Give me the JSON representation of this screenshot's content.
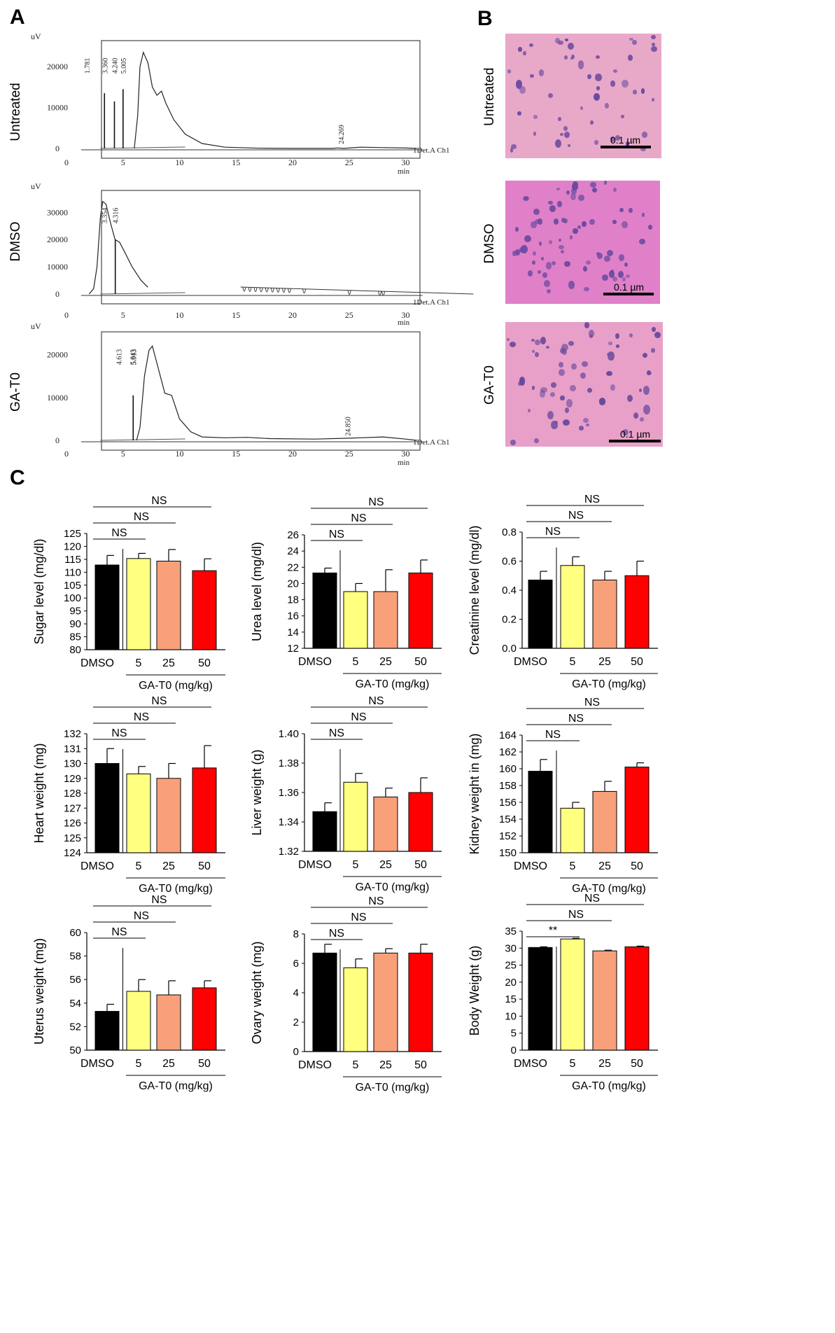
{
  "panels": {
    "a": "A",
    "b": "B",
    "c": "C"
  },
  "histology": {
    "rows": [
      {
        "label": "Untreated",
        "scale": "0.1  µm"
      },
      {
        "label": "DMSO",
        "scale": "0.1  µm"
      },
      {
        "label": "GA-T0",
        "scale": "0.1  µm"
      }
    ],
    "colors": {
      "tissue": "#e6a0c8",
      "nucleus": "#6a4aa0"
    }
  },
  "chromatograms": [
    {
      "row_label": "Untreated",
      "y_unit": "uV",
      "y_ticks": [
        0,
        10000,
        20000
      ],
      "ymax": 25000,
      "x_ticks": [
        0,
        5,
        10,
        15,
        20,
        25,
        30
      ],
      "x_unit": "min",
      "channel": "1Det.A Ch1",
      "peak_labels": [
        {
          "t": 1.781,
          "label": "1.781"
        },
        {
          "t": 3.36,
          "label": "3.360"
        },
        {
          "t": 4.24,
          "label": "4.240"
        },
        {
          "t": 5.005,
          "label": "5.005"
        },
        {
          "t": 24.269,
          "label": "24.269"
        }
      ],
      "spikes": [
        {
          "t": 3.36,
          "h": 13500
        },
        {
          "t": 4.24,
          "h": 11500
        },
        {
          "t": 5.005,
          "h": 14500
        }
      ],
      "trace": [
        [
          6.0,
          0
        ],
        [
          6.3,
          8000
        ],
        [
          6.5,
          20000
        ],
        [
          6.8,
          23500
        ],
        [
          7.2,
          21000
        ],
        [
          7.6,
          15000
        ],
        [
          8.0,
          13000
        ],
        [
          8.4,
          14000
        ],
        [
          8.8,
          11000
        ],
        [
          9.5,
          7000
        ],
        [
          10.5,
          3500
        ],
        [
          12,
          1200
        ],
        [
          14,
          300
        ],
        [
          17,
          50
        ],
        [
          20,
          0
        ],
        [
          23.5,
          0
        ],
        [
          24.0,
          120
        ],
        [
          24.5,
          0
        ],
        [
          26,
          300
        ],
        [
          28,
          200
        ],
        [
          30,
          100
        ],
        [
          31,
          0
        ]
      ]
    },
    {
      "row_label": "DMSO",
      "y_unit": "uV",
      "y_ticks": [
        0,
        10000,
        20000,
        30000
      ],
      "ymax": 36000,
      "x_ticks": [
        0,
        5,
        10,
        15,
        20,
        25,
        30
      ],
      "x_unit": "min",
      "channel": "1Det.A Ch1",
      "peak_labels": [
        {
          "t": 3.354,
          "label": "3.354"
        },
        {
          "t": 4.316,
          "label": "4.316"
        }
      ],
      "spikes": [
        {
          "t": 4.316,
          "h": 20000
        }
      ],
      "trace": [
        [
          2.0,
          0
        ],
        [
          2.4,
          2000
        ],
        [
          2.7,
          10000
        ],
        [
          3.0,
          28000
        ],
        [
          3.2,
          34000
        ],
        [
          3.5,
          33000
        ],
        [
          3.9,
          26000
        ],
        [
          4.3,
          20000
        ],
        [
          4.7,
          19000
        ],
        [
          5.2,
          15000
        ],
        [
          5.8,
          10000
        ],
        [
          6.6,
          5000
        ],
        [
          7.2,
          2500
        ]
      ],
      "dips": [
        15.6,
        16.1,
        16.6,
        17.1,
        17.6,
        18.1,
        18.6,
        19.1,
        19.6,
        20.9,
        24.9,
        27.6,
        27.9
      ],
      "flat_segment": [
        15.4,
        36.0
      ]
    },
    {
      "row_label": "GA-T0",
      "y_unit": "uV",
      "y_ticks": [
        0,
        10000,
        20000
      ],
      "ymax": 24000,
      "x_ticks": [
        0,
        5,
        10,
        15,
        20,
        25,
        30
      ],
      "x_unit": "min",
      "channel": "1Det.A Ch1",
      "peak_labels": [
        {
          "t": 4.613,
          "label": "4.613"
        },
        {
          "t": 5.843,
          "label": "5.843"
        },
        {
          "t": 5.913,
          "label": "5.913"
        },
        {
          "t": 24.85,
          "label": "24.850"
        }
      ],
      "spikes": [
        {
          "t": 5.9,
          "h": 10500
        }
      ],
      "trace": [
        [
          6.2,
          0
        ],
        [
          6.5,
          3000
        ],
        [
          6.9,
          15000
        ],
        [
          7.3,
          21000
        ],
        [
          7.6,
          22000
        ],
        [
          8.1,
          17000
        ],
        [
          8.7,
          11000
        ],
        [
          9.3,
          10500
        ],
        [
          10,
          5000
        ],
        [
          11,
          2000
        ],
        [
          12,
          800
        ],
        [
          14,
          600
        ],
        [
          16,
          700
        ],
        [
          18,
          400
        ],
        [
          22,
          300
        ],
        [
          25,
          500
        ],
        [
          28,
          800
        ],
        [
          30,
          300
        ],
        [
          31,
          0
        ]
      ]
    }
  ],
  "chart_data": [
    {
      "type": "bar",
      "categories": [
        "DMSO",
        "5",
        "25",
        "50"
      ],
      "values": [
        112.8,
        115.3,
        114.3,
        110.6
      ],
      "errors": [
        3.7,
        2.0,
        4.5,
        4.6
      ],
      "ylabel": "Sugar level (mg/dl)",
      "ylim": [
        80,
        125
      ],
      "yticks": [
        80,
        85,
        90,
        95,
        100,
        105,
        110,
        115,
        120,
        125
      ],
      "xgroup_label": "GA-T0 (mg/kg)",
      "significance": [
        "NS",
        "NS",
        "NS"
      ]
    },
    {
      "type": "bar",
      "categories": [
        "DMSO",
        "5",
        "25",
        "50"
      ],
      "values": [
        21.3,
        19.0,
        19.0,
        21.3
      ],
      "errors": [
        0.6,
        1.0,
        2.7,
        1.6
      ],
      "ylabel": "Urea level (mg/dl)",
      "ylim": [
        12,
        26
      ],
      "yticks": [
        12,
        14,
        16,
        18,
        20,
        22,
        24,
        26
      ],
      "xgroup_label": "GA-T0 (mg/kg)",
      "significance": [
        "NS",
        "NS",
        "NS"
      ]
    },
    {
      "type": "bar",
      "categories": [
        "DMSO",
        "5",
        "25",
        "50"
      ],
      "values": [
        0.47,
        0.57,
        0.47,
        0.5
      ],
      "errors": [
        0.06,
        0.06,
        0.06,
        0.1
      ],
      "ylabel": "Creatinine level (mg/dl)",
      "ylim": [
        0.0,
        0.8
      ],
      "yticks": [
        "0.0",
        "0.2",
        "0.4",
        "0.6",
        "0.8"
      ],
      "xgroup_label": "GA-T0 (mg/kg)",
      "significance": [
        "NS",
        "NS",
        "NS"
      ]
    },
    {
      "type": "bar",
      "categories": [
        "DMSO",
        "5",
        "25",
        "50"
      ],
      "values": [
        130.0,
        129.3,
        129.0,
        129.7
      ],
      "errors": [
        1.0,
        0.5,
        1.0,
        1.5
      ],
      "ylabel": "Heart weight (mg)",
      "ylim": [
        124,
        132
      ],
      "yticks": [
        124,
        125,
        126,
        127,
        128,
        129,
        130,
        131,
        132
      ],
      "xgroup_label": "GA-T0 (mg/kg)",
      "significance": [
        "NS",
        "NS",
        "NS"
      ]
    },
    {
      "type": "bar",
      "categories": [
        "DMSO",
        "5",
        "25",
        "50"
      ],
      "values": [
        1.347,
        1.367,
        1.357,
        1.36
      ],
      "errors": [
        0.006,
        0.006,
        0.006,
        0.01
      ],
      "ylabel": "Liver weight (g)",
      "ylim": [
        1.32,
        1.4
      ],
      "yticks": [
        "1.32",
        "1.34",
        "1.36",
        "1.38",
        "1.40"
      ],
      "xgroup_label": "GA-T0 (mg/kg)",
      "significance": [
        "NS",
        "NS",
        "NS"
      ]
    },
    {
      "type": "bar",
      "categories": [
        "DMSO",
        "5",
        "25",
        "50"
      ],
      "values": [
        159.7,
        155.3,
        157.3,
        160.2
      ],
      "errors": [
        1.4,
        0.7,
        1.2,
        0.5
      ],
      "ylabel": "Kidney weight in (mg)",
      "ylim": [
        150,
        164
      ],
      "yticks": [
        150,
        152,
        154,
        156,
        158,
        160,
        162,
        164
      ],
      "xgroup_label": "GA-T0 (mg/kg)",
      "significance": [
        "NS",
        "NS",
        "NS"
      ]
    },
    {
      "type": "bar",
      "categories": [
        "DMSO",
        "5",
        "25",
        "50"
      ],
      "values": [
        53.3,
        55.0,
        54.7,
        55.3
      ],
      "errors": [
        0.6,
        1.0,
        1.2,
        0.6
      ],
      "ylabel": "Uterus weight (mg)",
      "ylim": [
        50,
        60
      ],
      "yticks": [
        50,
        52,
        54,
        56,
        58,
        60
      ],
      "xgroup_label": "GA-T0 (mg/kg)",
      "significance": [
        "NS",
        "NS",
        "NS"
      ]
    },
    {
      "type": "bar",
      "categories": [
        "DMSO",
        "5",
        "25",
        "50"
      ],
      "values": [
        6.7,
        5.7,
        6.7,
        6.7
      ],
      "errors": [
        0.6,
        0.6,
        0.3,
        0.6
      ],
      "ylabel": "Ovary weight (mg)",
      "ylim": [
        0,
        8
      ],
      "yticks": [
        0,
        2,
        4,
        6,
        8
      ],
      "xgroup_label": "GA-T0 (mg/kg)",
      "significance": [
        "NS",
        "NS",
        "NS"
      ]
    },
    {
      "type": "bar",
      "categories": [
        "DMSO",
        "5",
        "25",
        "50"
      ],
      "values": [
        30.2,
        32.7,
        29.2,
        30.4
      ],
      "errors": [
        0.2,
        0.2,
        0.2,
        0.2
      ],
      "ylabel": "Body Weight (g)",
      "ylim": [
        0,
        35
      ],
      "yticks": [
        0,
        5,
        10,
        15,
        20,
        25,
        30,
        35
      ],
      "xgroup_label": "GA-T0 (mg/kg)",
      "significance": [
        "**",
        "NS",
        "NS"
      ]
    }
  ],
  "bar_colors": [
    "#000000",
    "#ffff80",
    "#f8a07a",
    "#ff0000"
  ]
}
